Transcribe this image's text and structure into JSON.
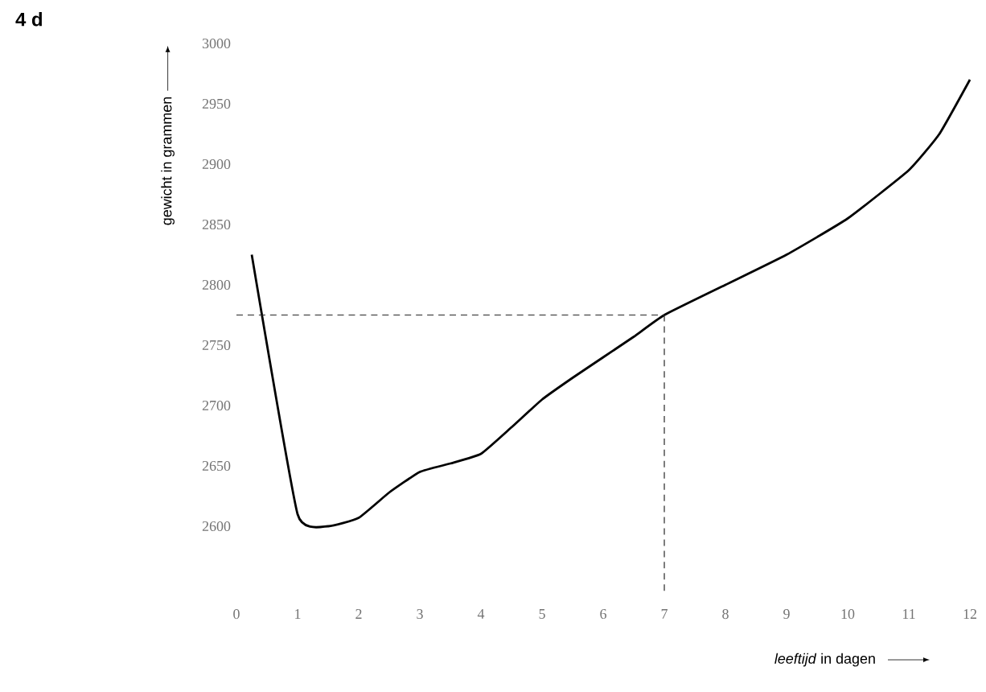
{
  "chart_data": {
    "type": "line",
    "xlabel": "*leeftijd* in dagen",
    "ylabel": "gewicht in grammen",
    "annotations": [
      "4 d"
    ],
    "x": [
      0.25,
      1,
      1.5,
      2,
      2.5,
      3,
      3.5,
      4,
      4.5,
      5,
      5.5,
      6,
      6.5,
      7,
      8,
      9,
      10,
      11,
      11.5,
      12
    ],
    "values": [
      2825,
      2610,
      2600,
      2607,
      2628,
      2645,
      2652,
      2660,
      2682,
      2705,
      2723,
      2740,
      2757,
      2775,
      2800,
      2825,
      2855,
      2895,
      2925,
      2970
    ],
    "color": "#000000",
    "line_style": "solid",
    "marker": "none",
    "xlim": [
      0,
      12
    ],
    "ylim": [
      2600,
      3000
    ],
    "xticks": [
      0,
      1,
      2,
      3,
      4,
      5,
      6,
      7,
      8,
      9,
      10,
      11,
      12
    ],
    "yticks": [
      2600,
      2650,
      2700,
      2750,
      2800,
      2850,
      2900,
      2950,
      3000
    ],
    "grid": false,
    "ref_lines": [
      {
        "axis": "y",
        "value": 2775,
        "line_style": "dashed"
      },
      {
        "axis": "x",
        "value": 7,
        "line_style": "dashed"
      }
    ]
  }
}
